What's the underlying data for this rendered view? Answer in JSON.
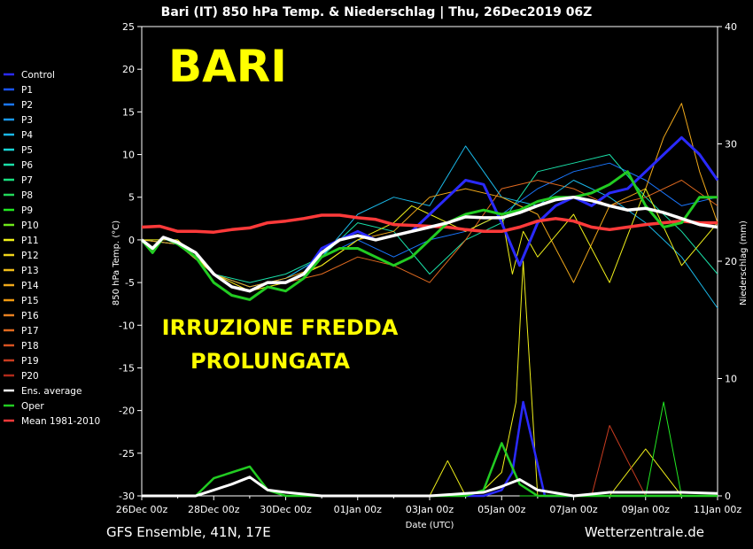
{
  "chart_data": {
    "type": "line",
    "title": "Bari  (IT)  850 hPa Temp. & Niederschlag | Thu, 26Dec2019 06Z",
    "xlabel": "Date (UTC)",
    "ylabel_left": "850 hPa Temp. (°C)",
    "ylabel_right": "Niederschlag (mm)",
    "ylim_left": [
      -30,
      25
    ],
    "ylim_right": [
      0,
      40
    ],
    "yticks_left": [
      25,
      20,
      15,
      10,
      5,
      0,
      -5,
      -10,
      -15,
      -20,
      -25,
      -30
    ],
    "yticks_right": [
      40,
      30,
      20,
      10,
      0
    ],
    "xlim_days": [
      0,
      16
    ],
    "xticks": [
      "26Dec 00z",
      "28Dec 00z",
      "30Dec 00z",
      "01Jan 00z",
      "03Jan 00z",
      "05Jan 00z",
      "07Jan 00z",
      "09Jan 00z",
      "11Jan 00z"
    ],
    "footer_left": "GFS Ensemble, 41N, 17E",
    "footer_right": "Wetterzentrale.de",
    "overlay_title": "BARI",
    "overlay_line1": "IRRUZIONE FREDDA",
    "overlay_line2": "PROLUNGATA",
    "legend": [
      {
        "label": "Control",
        "color": "#2a2aff"
      },
      {
        "label": "P1",
        "color": "#1a55ff"
      },
      {
        "label": "P2",
        "color": "#1a77ff"
      },
      {
        "label": "P3",
        "color": "#1a99ee"
      },
      {
        "label": "P4",
        "color": "#1ab8e8"
      },
      {
        "label": "P5",
        "color": "#1ad6d6"
      },
      {
        "label": "P6",
        "color": "#1ae0a8"
      },
      {
        "label": "P7",
        "color": "#1ae080"
      },
      {
        "label": "P8",
        "color": "#22d85a"
      },
      {
        "label": "P9",
        "color": "#22e822"
      },
      {
        "label": "P10",
        "color": "#6ee81a"
      },
      {
        "label": "P11",
        "color": "#f0f01a"
      },
      {
        "label": "P12",
        "color": "#f0d41a"
      },
      {
        "label": "P13",
        "color": "#f0bc1a"
      },
      {
        "label": "P14",
        "color": "#f0a81a"
      },
      {
        "label": "P15",
        "color": "#f09a10"
      },
      {
        "label": "P16",
        "color": "#e88020"
      },
      {
        "label": "P17",
        "color": "#e06a20"
      },
      {
        "label": "P18",
        "color": "#d85220"
      },
      {
        "label": "P19",
        "color": "#c83c20"
      },
      {
        "label": "P20",
        "color": "#b02a1a"
      },
      {
        "label": "Ens. average",
        "color": "#ffffff"
      },
      {
        "label": "Oper",
        "color": "#22cc22"
      },
      {
        "label": "Mean 1981-2010",
        "color": "#ff3a3a"
      }
    ],
    "series": [
      {
        "key": "mean_clim",
        "x": [
          0,
          0.5,
          1,
          1.5,
          2,
          2.5,
          3,
          3.5,
          4,
          4.5,
          5,
          5.5,
          6,
          6.5,
          7,
          7.5,
          8,
          8.5,
          9,
          9.5,
          10,
          10.5,
          11,
          11.5,
          12,
          12.5,
          13,
          13.5,
          14,
          14.5,
          15,
          15.5,
          16
        ],
        "y": [
          1.5,
          1.6,
          1.0,
          1.0,
          0.9,
          1.2,
          1.4,
          2.0,
          2.2,
          2.5,
          2.9,
          2.9,
          2.6,
          2.4,
          1.8,
          1.7,
          1.6,
          1.5,
          1.2,
          1.0,
          1.0,
          1.5,
          2.2,
          2.5,
          2.2,
          1.5,
          1.2,
          1.5,
          1.8,
          2.0,
          2.2,
          2.0,
          2.0
        ]
      },
      {
        "key": "ens_avg",
        "x": [
          0,
          0.3,
          0.6,
          1,
          1.5,
          2,
          2.5,
          3,
          3.5,
          4,
          4.5,
          5,
          5.5,
          6,
          6.5,
          7,
          7.5,
          8,
          8.5,
          9,
          9.5,
          10,
          10.5,
          11,
          11.5,
          12,
          12.5,
          13,
          13.5,
          14,
          14.5,
          15,
          15.5,
          16
        ],
        "y": [
          0,
          -1,
          0.3,
          -0.3,
          -1.5,
          -4,
          -5.5,
          -6,
          -5,
          -5,
          -4,
          -1.5,
          0,
          0.5,
          0,
          0.5,
          1,
          1.5,
          2,
          2.7,
          2.6,
          2.6,
          3.2,
          4,
          4.7,
          5,
          4.6,
          4,
          3.5,
          3.7,
          3.2,
          2.5,
          1.8,
          1.5
        ]
      },
      {
        "key": "oper",
        "x": [
          0,
          0.3,
          0.6,
          1,
          1.5,
          2,
          2.5,
          3,
          3.5,
          4,
          4.5,
          5,
          5.5,
          6,
          6.5,
          7,
          7.5,
          8,
          8.5,
          9,
          9.5,
          10,
          10.5,
          11,
          11.5,
          12,
          12.5,
          13,
          13.5,
          14,
          14.5,
          15,
          15.5,
          16
        ],
        "y": [
          0,
          -1.5,
          0.3,
          -0.5,
          -2,
          -5,
          -6.5,
          -7,
          -5.5,
          -6,
          -4.5,
          -2,
          -1,
          -1,
          -2,
          -3,
          -2,
          0,
          2,
          3,
          3.5,
          3.0,
          3.5,
          4.5,
          5,
          5,
          5.5,
          6.5,
          8,
          4,
          1.5,
          2,
          5,
          5
        ]
      },
      {
        "key": "control",
        "x": [
          0,
          0.3,
          0.6,
          1,
          1.5,
          2,
          2.5,
          3,
          3.5,
          4,
          4.5,
          5,
          5.5,
          6,
          6.5,
          7,
          7.5,
          8,
          8.5,
          9,
          9.5,
          10,
          10.5,
          11,
          11.5,
          12,
          12.5,
          13,
          13.5,
          14,
          14.5,
          15,
          15.5,
          16
        ],
        "y": [
          0,
          -1,
          0.3,
          -0.5,
          -1.5,
          -4,
          -5.5,
          -6,
          -5,
          -5,
          -4,
          -1,
          0,
          1,
          0,
          0.5,
          1,
          3,
          5,
          7,
          6.5,
          2,
          -3,
          2,
          4,
          5,
          4,
          5.5,
          6,
          8,
          10,
          12,
          10,
          7
        ]
      },
      {
        "key": "p11",
        "x": [
          0,
          1,
          2,
          3,
          4,
          5,
          6,
          7,
          7.5,
          8,
          8.5,
          9,
          9.5,
          10,
          10.3,
          10.6,
          11,
          12,
          13,
          14,
          15,
          16
        ],
        "y": [
          0,
          0,
          -4,
          -6,
          -5,
          -3,
          0,
          2,
          4,
          3,
          2,
          1,
          2,
          3,
          -4,
          1,
          -2,
          3,
          -5,
          6,
          -3,
          2
        ]
      },
      {
        "key": "p14",
        "x": [
          0,
          1,
          2,
          3,
          4,
          5,
          6,
          7,
          8,
          9,
          10,
          11,
          12,
          13,
          14,
          14.5,
          15,
          15.5,
          16
        ],
        "y": [
          0,
          -0.5,
          -4,
          -5.5,
          -4.5,
          -3,
          0,
          1,
          5,
          6,
          5,
          3,
          -5,
          4,
          6,
          12,
          16,
          8,
          2
        ]
      },
      {
        "key": "p4",
        "x": [
          0,
          1,
          2,
          3,
          4,
          5,
          6,
          7,
          8,
          9,
          10,
          11,
          12,
          13,
          14,
          15,
          16
        ],
        "y": [
          0,
          -0.5,
          -4,
          -5.5,
          -4.5,
          -2,
          3,
          5,
          4,
          11,
          5,
          4,
          7,
          5,
          2,
          -2,
          -8
        ]
      },
      {
        "key": "p17",
        "x": [
          0,
          1,
          2,
          3,
          4,
          5,
          6,
          7,
          8,
          9,
          10,
          11,
          12,
          13,
          14,
          15,
          16
        ],
        "y": [
          0,
          -0.5,
          -4,
          -6,
          -5,
          -4,
          -2,
          -3,
          -5,
          0,
          6,
          7,
          6,
          4,
          5,
          7,
          4
        ]
      },
      {
        "key": "p6",
        "x": [
          0,
          1,
          2,
          3,
          4,
          5,
          6,
          7,
          8,
          9,
          10,
          11,
          12,
          13,
          14,
          15,
          16
        ],
        "y": [
          0,
          -0.5,
          -4,
          -5,
          -4,
          -2,
          2,
          1,
          -4,
          0,
          2,
          8,
          9,
          10,
          5,
          1,
          -4
        ]
      },
      {
        "key": "p2",
        "x": [
          0,
          1,
          2,
          3,
          4,
          5,
          6,
          7,
          8,
          9,
          10,
          11,
          12,
          13,
          14,
          15,
          16
        ],
        "y": [
          0,
          -0.5,
          -4,
          -5.5,
          -4.5,
          -2,
          0,
          -2,
          0,
          1,
          3,
          6,
          8,
          9,
          7,
          4,
          5
        ]
      }
    ],
    "precip": [
      {
        "key": "p11_precip",
        "x": [
          8,
          8.5,
          9,
          9.5,
          10,
          10.4,
          10.6,
          10.8,
          11,
          12,
          13,
          14,
          15,
          16
        ],
        "y": [
          0,
          3,
          0,
          0.5,
          2,
          8,
          20,
          10,
          0,
          0,
          0,
          4,
          0,
          0
        ]
      },
      {
        "key": "p9_precip",
        "x": [
          10.5,
          11,
          12,
          13,
          14,
          14.5,
          15,
          16
        ],
        "y": [
          0,
          0,
          0,
          0,
          0,
          8,
          0,
          0
        ]
      },
      {
        "key": "p18_precip",
        "x": [
          11,
          12,
          12.5,
          13,
          13.5,
          14,
          15,
          16
        ],
        "y": [
          0,
          0,
          0,
          6,
          3,
          0,
          0,
          0
        ]
      },
      {
        "key": "control_precip",
        "x": [
          9,
          9.5,
          10,
          10.3,
          10.6,
          10.9,
          11.2,
          12
        ],
        "y": [
          0,
          0,
          0.5,
          2,
          8,
          4,
          0,
          0
        ]
      },
      {
        "key": "oper_precip",
        "x": [
          0,
          1,
          1.5,
          2,
          2.5,
          3,
          3.5,
          4,
          5,
          6,
          7,
          8,
          9,
          9.5,
          10,
          10.5,
          11,
          12,
          13,
          14,
          15,
          16
        ],
        "y": [
          0,
          0,
          0,
          1.5,
          2,
          2.5,
          0.5,
          0,
          0,
          0,
          0,
          0,
          0,
          0.5,
          4.5,
          1,
          0,
          0,
          0,
          0,
          0,
          0
        ]
      },
      {
        "key": "ens_avg_precip",
        "x": [
          0,
          1,
          1.5,
          2,
          2.5,
          3,
          3.5,
          4,
          5,
          6,
          7,
          8,
          9,
          9.5,
          10,
          10.5,
          11,
          12,
          13,
          14,
          15,
          16
        ],
        "y": [
          0,
          0,
          0,
          0.5,
          1,
          1.6,
          0.5,
          0.3,
          0,
          0,
          0,
          0,
          0.2,
          0.3,
          0.8,
          1.4,
          0.5,
          0,
          0.3,
          0.3,
          0.3,
          0.2
        ]
      }
    ]
  }
}
